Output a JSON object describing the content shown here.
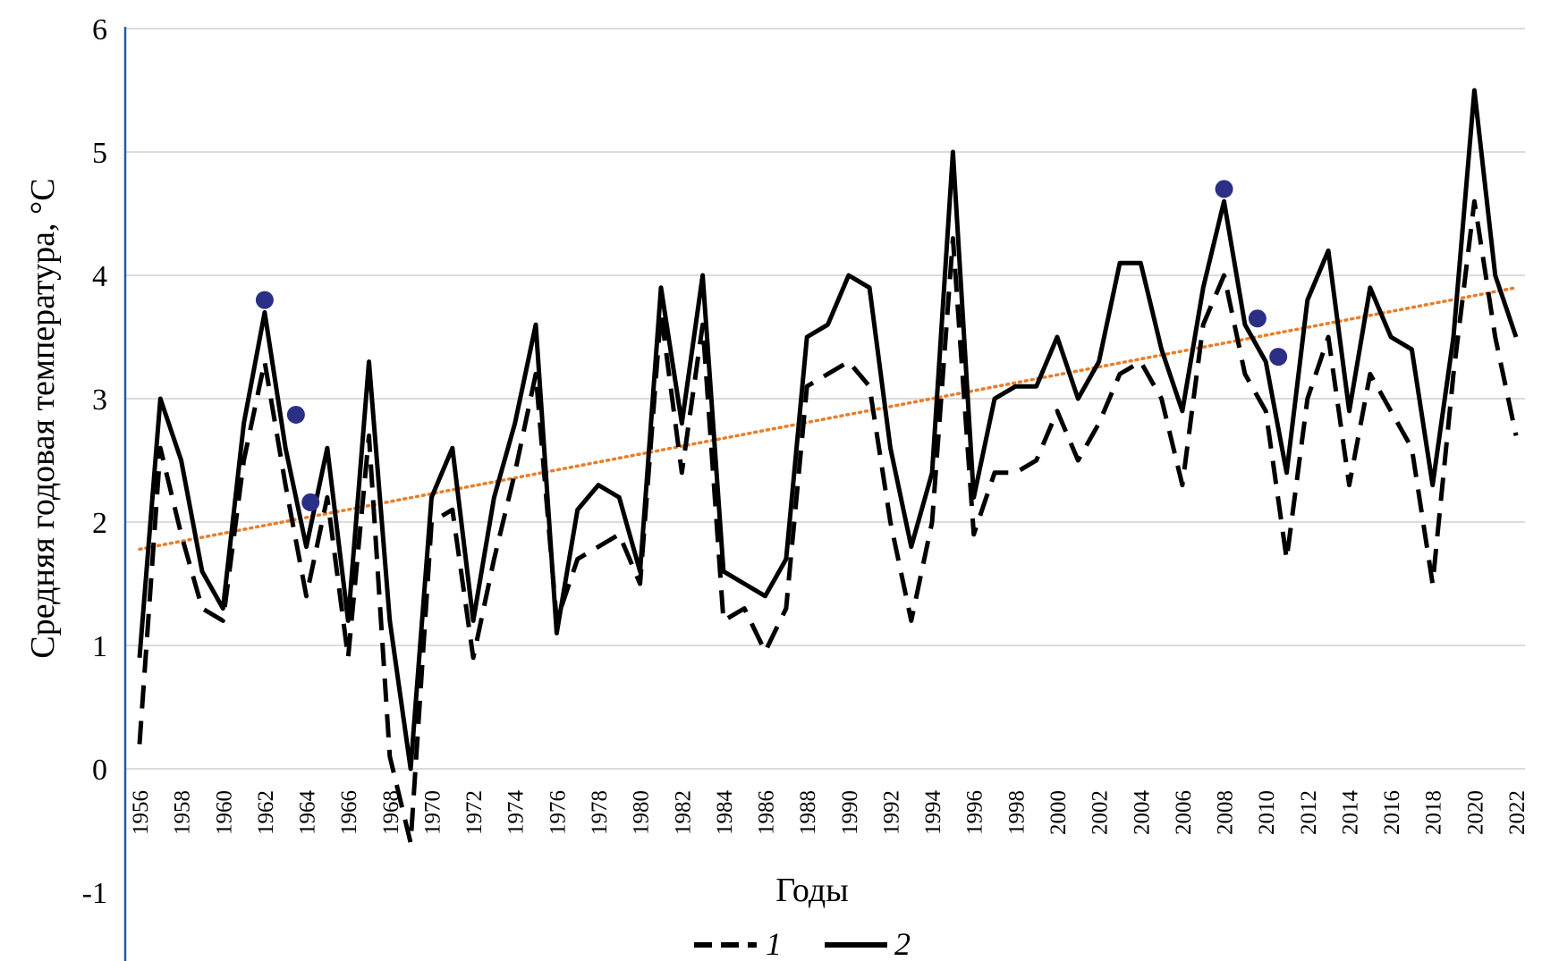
{
  "chart_data": {
    "type": "line",
    "ylabel": "Средняя годовая температура, °С",
    "xlabel": "Годы",
    "ylim": [
      -1,
      6
    ],
    "yticks": [
      "-1",
      "0",
      "1",
      "2",
      "3",
      "4",
      "5",
      "6"
    ],
    "xlim": [
      1956,
      2022
    ],
    "xticks": [
      "1956",
      "1958",
      "1960",
      "1962",
      "1964",
      "1966",
      "1968",
      "1970",
      "1972",
      "1974",
      "1976",
      "1978",
      "1980",
      "1982",
      "1984",
      "1986",
      "1988",
      "1990",
      "1992",
      "1994",
      "1996",
      "1998",
      "2000",
      "2002",
      "2004",
      "2006",
      "2008",
      "2010",
      "2012",
      "2014",
      "2016",
      "2018",
      "2020",
      "2022"
    ],
    "grid": true,
    "legend_position": "bottom-center",
    "x": [
      1956,
      1957,
      1958,
      1959,
      1960,
      1961,
      1962,
      1963,
      1964,
      1965,
      1966,
      1967,
      1968,
      1969,
      1970,
      1971,
      1972,
      1973,
      1974,
      1975,
      1976,
      1977,
      1978,
      1979,
      1980,
      1981,
      1982,
      1983,
      1984,
      1985,
      1986,
      1987,
      1988,
      1989,
      1990,
      1991,
      1992,
      1993,
      1994,
      1995,
      1996,
      1997,
      1998,
      1999,
      2000,
      2001,
      2002,
      2003,
      2004,
      2005,
      2006,
      2007,
      2008,
      2009,
      2010,
      2011,
      2012,
      2013,
      2014,
      2015,
      2016,
      2017,
      2018,
      2019,
      2020,
      2021,
      2022
    ],
    "series": [
      {
        "name": "1",
        "style": "dashed",
        "color": "#000000",
        "values": [
          0.2,
          2.6,
          1.9,
          1.3,
          1.2,
          2.5,
          3.3,
          2.3,
          1.4,
          2.2,
          0.9,
          2.7,
          0.1,
          -0.6,
          2.0,
          2.1,
          0.9,
          1.7,
          2.4,
          3.2,
          1.2,
          1.7,
          1.8,
          1.9,
          1.5,
          3.7,
          2.4,
          3.6,
          1.2,
          1.3,
          0.95,
          1.3,
          3.1,
          3.2,
          3.3,
          3.1,
          2.0,
          1.2,
          2.0,
          4.3,
          1.9,
          2.4,
          2.4,
          2.5,
          2.9,
          2.5,
          2.8,
          3.2,
          3.3,
          3.0,
          2.3,
          3.6,
          4.0,
          3.2,
          2.9,
          1.7,
          3.0,
          3.5,
          2.3,
          3.2,
          2.9,
          2.6,
          1.5,
          3.2,
          4.6,
          3.5,
          2.7
        ]
      },
      {
        "name": "2",
        "style": "solid",
        "color": "#000000",
        "values": [
          0.9,
          3.0,
          2.5,
          1.6,
          1.3,
          2.8,
          3.7,
          2.6,
          1.8,
          2.6,
          1.2,
          3.3,
          1.2,
          0.0,
          2.2,
          2.6,
          1.2,
          2.2,
          2.8,
          3.6,
          1.1,
          2.1,
          2.3,
          2.2,
          1.6,
          3.9,
          2.8,
          4.0,
          1.6,
          1.5,
          1.4,
          1.7,
          3.5,
          3.6,
          4.0,
          3.9,
          2.6,
          1.8,
          2.4,
          5.0,
          2.2,
          3.0,
          3.1,
          3.1,
          3.5,
          3.0,
          3.3,
          4.1,
          4.1,
          3.4,
          2.9,
          3.9,
          4.6,
          3.6,
          3.3,
          2.4,
          3.8,
          4.2,
          2.9,
          3.9,
          3.5,
          3.4,
          2.3,
          3.5,
          5.5,
          4.0,
          3.5
        ]
      }
    ],
    "trend": {
      "style": "dotted",
      "color": "#e87e2a",
      "x": [
        1956,
        2022
      ],
      "y": [
        1.78,
        3.9
      ]
    },
    "highlights": {
      "color": "#2b2f86",
      "points": [
        {
          "x": 1962,
          "y": 3.8
        },
        {
          "x": 1963.5,
          "y": 2.87
        },
        {
          "x": 1964.2,
          "y": 2.16
        },
        {
          "x": 2008,
          "y": 4.7
        },
        {
          "x": 2009.6,
          "y": 3.65
        },
        {
          "x": 2010.6,
          "y": 3.34
        }
      ]
    }
  }
}
